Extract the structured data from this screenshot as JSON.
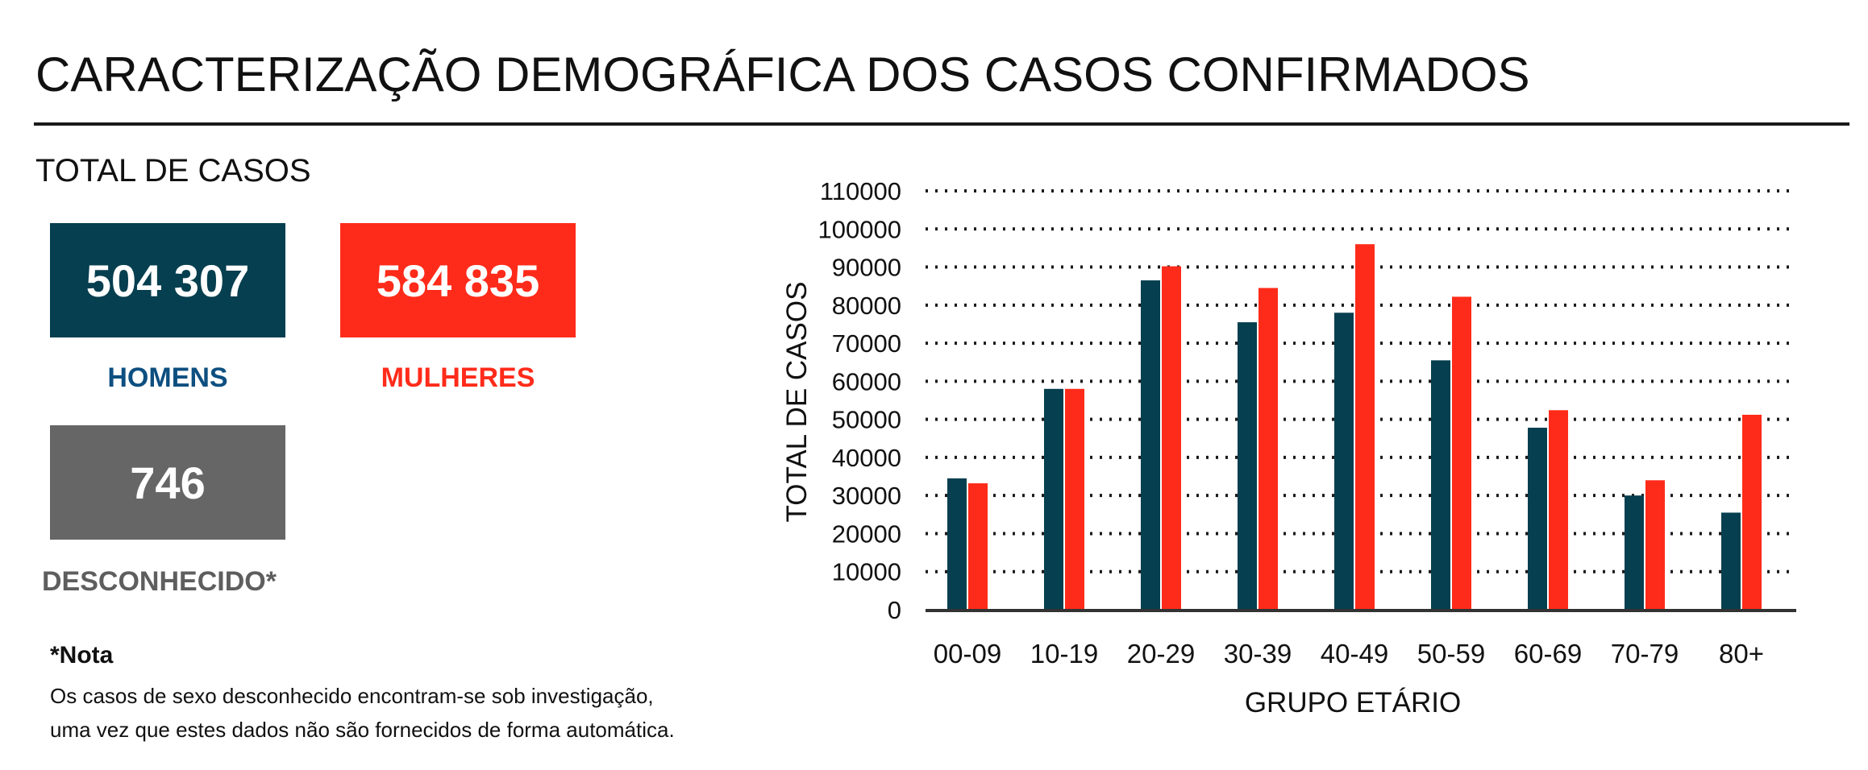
{
  "header": {
    "title": "CARACTERIZAÇÃO DEMOGRÁFICA DOS CASOS CONFIRMADOS"
  },
  "totals": {
    "label": "TOTAL DE CASOS",
    "men": {
      "value": "504 307",
      "label": "HOMENS",
      "color": "#063f4f"
    },
    "women": {
      "value": "584 835",
      "label": "MULHERES",
      "color": "#ff2b1a"
    },
    "unknown": {
      "value": "746",
      "label": "DESCONHECIDO*",
      "color": "#666666"
    }
  },
  "note": {
    "title": "*Nota",
    "lines": [
      "Os casos de sexo desconhecido encontram-se sob investigação,",
      "uma vez que estes dados não são fornecidos de forma automática."
    ]
  },
  "chart_data": {
    "type": "bar",
    "title": "",
    "xlabel": "GRUPO ETÁRIO",
    "ylabel": "TOTAL DE CASOS",
    "categories": [
      "00-09",
      "10-19",
      "20-29",
      "30-39",
      "40-49",
      "50-59",
      "60-69",
      "70-79",
      "80+"
    ],
    "series": [
      {
        "color": "#063f4f",
        "values": [
          34500,
          58000,
          86500,
          75500,
          78000,
          65500,
          47800,
          30000,
          25500
        ]
      },
      {
        "color": "#ff2b1a",
        "values": [
          33200,
          58000,
          90200,
          84500,
          96000,
          82200,
          52400,
          34000,
          51200
        ]
      }
    ],
    "ylim": [
      0,
      110000
    ],
    "yticks": [
      "0",
      "10000",
      "20000",
      "30000",
      "40000",
      "50000",
      "60000",
      "70000",
      "80000",
      "90000",
      "100000",
      "110000"
    ],
    "grid": true,
    "legend": "none"
  }
}
